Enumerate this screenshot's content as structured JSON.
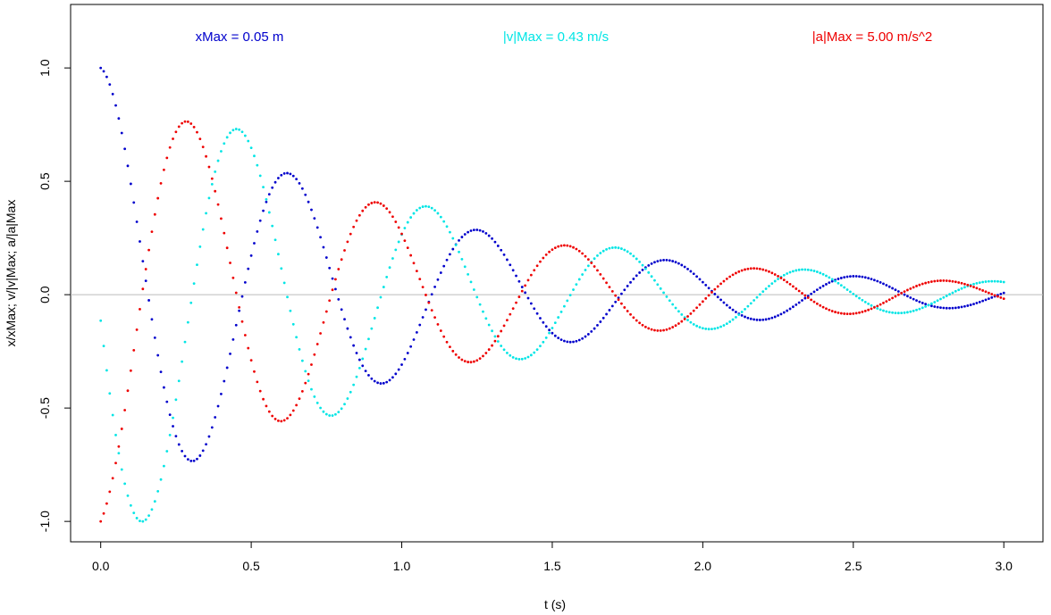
{
  "chart_data": {
    "type": "scatter",
    "xlabel": "t (s)",
    "ylabel": "x/xMax;  v/|v|Max;  a/|a|Max",
    "xlim": [
      -0.1,
      3.13
    ],
    "ylim": [
      -1.09,
      1.28
    ],
    "x_ticks": [
      "0.0",
      "0.5",
      "1.0",
      "1.5",
      "2.0",
      "2.5",
      "3.0"
    ],
    "y_ticks": [
      "-1.0",
      "-0.5",
      "0.0",
      "0.5",
      "1.0"
    ],
    "reference_line_y": 0,
    "grid": false,
    "t_start": 0,
    "t_end": 3.0,
    "t_step": 0.01,
    "model": {
      "damping_rate": 1.0,
      "angular_frequency": 10.0
    },
    "annotations": [
      {
        "text": "xMax = 0.05 m",
        "color": "#0000cc"
      },
      {
        "text": "|v|Max = 0.43 m/s",
        "color": "#00e5e5"
      },
      {
        "text": "|a|Max = 5.00 m/s^2",
        "color": "#ee0000"
      }
    ],
    "series": [
      {
        "key": "x",
        "color": "#0000cc"
      },
      {
        "key": "v",
        "color": "#00e5e5"
      },
      {
        "key": "a",
        "color": "#ee0000"
      }
    ]
  }
}
